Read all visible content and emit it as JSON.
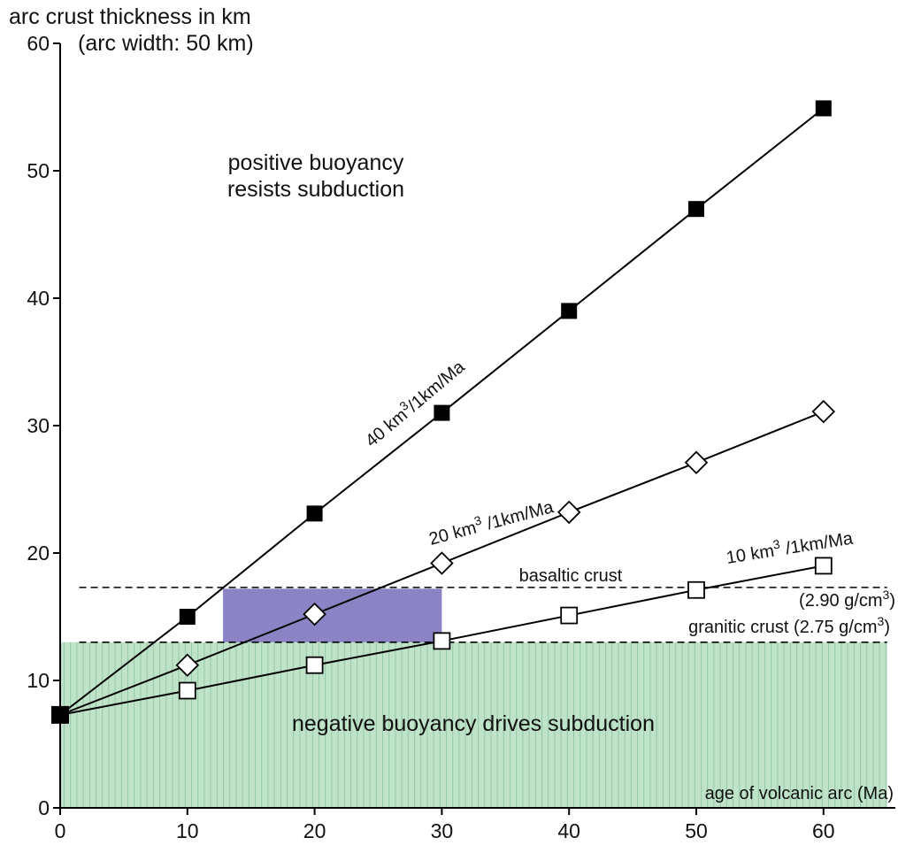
{
  "chart_data": {
    "type": "line",
    "title": "arc crust thickness in km",
    "subtitle": "(arc width: 50 km)",
    "xlabel": "age of volcanic arc (Ma)",
    "ylabel": "",
    "xlim": [
      0,
      65
    ],
    "ylim": [
      0,
      60
    ],
    "xticks": [
      0,
      10,
      20,
      30,
      40,
      50,
      60
    ],
    "yticks": [
      0,
      10,
      20,
      30,
      40,
      50,
      60
    ],
    "grid": false,
    "series": [
      {
        "name_prefix": "40 km",
        "name_sup": "3",
        "name_suffix": "/1km/Ma",
        "marker": "filled-square",
        "x": [
          0,
          10,
          20,
          30,
          40,
          50,
          60
        ],
        "y": [
          7.3,
          15,
          23.1,
          31,
          39,
          47,
          54.9
        ]
      },
      {
        "name_prefix": "20 km",
        "name_sup": "3",
        "name_suffix": " /1km/Ma",
        "marker": "open-diamond",
        "x": [
          0,
          10,
          20,
          30,
          40,
          50,
          60
        ],
        "y": [
          7.3,
          11.2,
          15.2,
          19.2,
          23.2,
          27.1,
          31.1
        ]
      },
      {
        "name_prefix": "10 km",
        "name_sup": "3",
        "name_suffix": " /1km/Ma",
        "marker": "open-square",
        "x": [
          0,
          10,
          20,
          30,
          40,
          50,
          60
        ],
        "y": [
          7.3,
          9.2,
          11.2,
          13.1,
          15.1,
          17.1,
          19
        ]
      }
    ],
    "reference_lines": [
      {
        "id": "basaltic",
        "y": 17.3,
        "x_range": [
          1.5,
          65
        ],
        "label": "basaltic crust",
        "label2_prefix": "(2.90 g/cm",
        "label2_sup": "3",
        "label2_suffix": ")"
      },
      {
        "id": "granitic",
        "y": 13,
        "x_range": [
          1.5,
          65
        ],
        "label_prefix": "granitic crust (2.75 g/cm",
        "label_sup": "3",
        "label_suffix": ")"
      }
    ],
    "regions": [
      {
        "id": "negative",
        "x_range": [
          0,
          65
        ],
        "y_range": [
          0,
          13
        ],
        "color": "#bfe3c9",
        "stripe_color": "#95c9a4",
        "label": "negative buoyancy drives subduction"
      },
      {
        "id": "transition",
        "x_range": [
          12.8,
          30
        ],
        "y_range": [
          13,
          17.2
        ],
        "color": "#8b84c4"
      }
    ],
    "annotations": {
      "positive_line1": "positive buoyancy",
      "positive_line2": "resists subduction"
    }
  }
}
